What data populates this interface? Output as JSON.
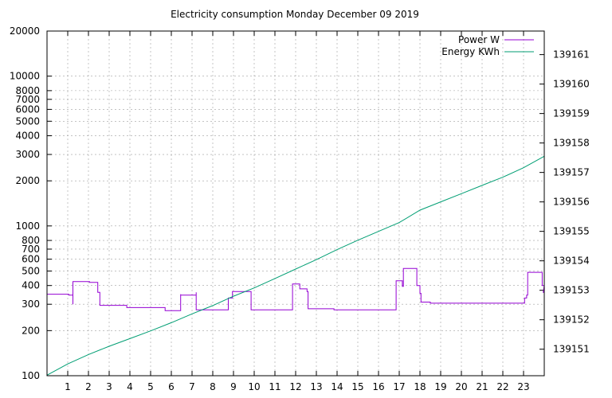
{
  "chart_data": {
    "type": "line",
    "title": "Electricity consumption Monday December 09 2019",
    "xlabel": "",
    "ylabel": "",
    "y2label": "",
    "legend_position": "top-right",
    "grid": true,
    "xlim": [
      0,
      24
    ],
    "x_ticks": [
      1,
      2,
      3,
      4,
      5,
      6,
      7,
      8,
      9,
      10,
      11,
      12,
      13,
      14,
      15,
      16,
      17,
      18,
      19,
      20,
      21,
      22,
      23
    ],
    "ylim": [
      100,
      20000
    ],
    "y_scale": "log",
    "y_ticks": [
      100,
      200,
      300,
      400,
      500,
      600,
      700,
      800,
      1000,
      2000,
      3000,
      4000,
      5000,
      6000,
      7000,
      8000,
      10000,
      20000
    ],
    "y2lim": [
      139150.1,
      139161.8
    ],
    "y2_ticks": [
      139151,
      139152,
      139153,
      139154,
      139155,
      139156,
      139157,
      139158,
      139159,
      139160,
      139161
    ],
    "series": [
      {
        "name": "Power W",
        "axis": "y",
        "color": "#9400d3",
        "points": [
          [
            0.0,
            350
          ],
          [
            1.05,
            350
          ],
          [
            1.05,
            345
          ],
          [
            1.25,
            345
          ],
          [
            1.25,
            300
          ],
          [
            1.25,
            425
          ],
          [
            2.05,
            425
          ],
          [
            2.05,
            420
          ],
          [
            2.45,
            420
          ],
          [
            2.45,
            360
          ],
          [
            2.55,
            360
          ],
          [
            2.55,
            295
          ],
          [
            3.0,
            295
          ],
          [
            3.85,
            295
          ],
          [
            3.85,
            285
          ],
          [
            5.7,
            285
          ],
          [
            5.7,
            272
          ],
          [
            6.45,
            272
          ],
          [
            6.45,
            350
          ],
          [
            6.45,
            345
          ],
          [
            7.2,
            345
          ],
          [
            7.2,
            360
          ],
          [
            7.2,
            275
          ],
          [
            8.75,
            275
          ],
          [
            8.75,
            330
          ],
          [
            8.95,
            330
          ],
          [
            8.95,
            365
          ],
          [
            9.85,
            365
          ],
          [
            9.85,
            275
          ],
          [
            11.85,
            275
          ],
          [
            11.85,
            410
          ],
          [
            12.2,
            410
          ],
          [
            12.2,
            380
          ],
          [
            12.55,
            380
          ],
          [
            12.55,
            365
          ],
          [
            12.6,
            365
          ],
          [
            12.6,
            280
          ],
          [
            13.85,
            280
          ],
          [
            13.85,
            275
          ],
          [
            16.85,
            275
          ],
          [
            16.85,
            430
          ],
          [
            17.15,
            430
          ],
          [
            17.15,
            395
          ],
          [
            17.2,
            395
          ],
          [
            17.2,
            520
          ],
          [
            17.85,
            520
          ],
          [
            17.85,
            400
          ],
          [
            18.0,
            400
          ],
          [
            18.0,
            355
          ],
          [
            18.05,
            355
          ],
          [
            18.05,
            310
          ],
          [
            18.5,
            310
          ],
          [
            18.5,
            305
          ],
          [
            23.05,
            305
          ],
          [
            23.05,
            330
          ],
          [
            23.15,
            330
          ],
          [
            23.15,
            345
          ],
          [
            23.2,
            345
          ],
          [
            23.2,
            490
          ],
          [
            23.9,
            490
          ],
          [
            23.9,
            400
          ],
          [
            24.0,
            400
          ],
          [
            23.95,
            360
          ],
          [
            24.0,
            360
          ]
        ]
      },
      {
        "name": "Energy KWh",
        "axis": "y2",
        "color": "#009e73",
        "points": [
          [
            0.0,
            139150.12
          ],
          [
            1.0,
            139150.5
          ],
          [
            2.0,
            139150.82
          ],
          [
            3.0,
            139151.1
          ],
          [
            4.0,
            139151.36
          ],
          [
            5.0,
            139151.62
          ],
          [
            6.0,
            139151.9
          ],
          [
            7.0,
            139152.2
          ],
          [
            8.0,
            139152.48
          ],
          [
            9.0,
            139152.8
          ],
          [
            10.0,
            139153.08
          ],
          [
            11.0,
            139153.4
          ],
          [
            12.0,
            139153.72
          ],
          [
            13.0,
            139154.04
          ],
          [
            14.0,
            139154.38
          ],
          [
            15.0,
            139154.7
          ],
          [
            16.0,
            139155.0
          ],
          [
            17.0,
            139155.3
          ],
          [
            18.0,
            139155.72
          ],
          [
            19.0,
            139156.0
          ],
          [
            20.0,
            139156.28
          ],
          [
            21.0,
            139156.56
          ],
          [
            22.0,
            139156.84
          ],
          [
            23.0,
            139157.16
          ],
          [
            24.0,
            139157.55
          ]
        ]
      }
    ]
  }
}
